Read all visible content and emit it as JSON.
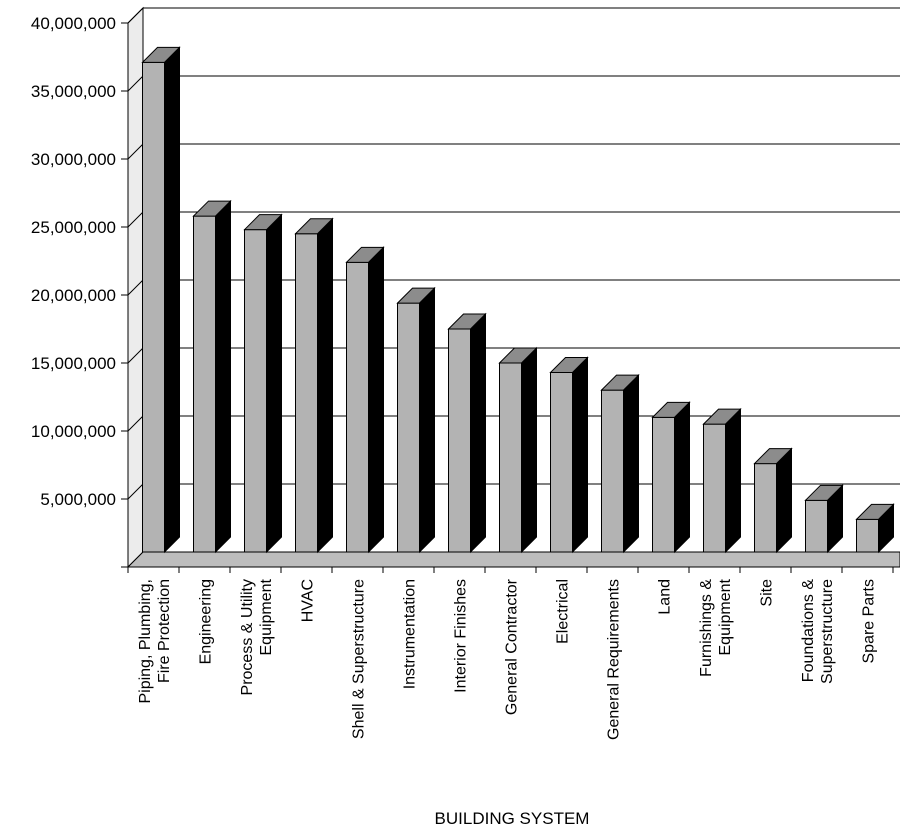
{
  "chart_data": {
    "type": "bar",
    "xlabel": "BUILDING SYSTEM",
    "ylabel": "",
    "ylim": [
      0,
      40000000
    ],
    "grid": true,
    "yticks": [
      "5,000,000",
      "10,000,000",
      "15,000,000",
      "20,000,000",
      "25,000,000",
      "30,000,000",
      "35,000,000",
      "40,000,000"
    ],
    "ytick_values": [
      5000000,
      10000000,
      15000000,
      20000000,
      25000000,
      30000000,
      35000000,
      40000000
    ],
    "categories": [
      [
        "Piping, Plumbing,",
        "Fire Protection"
      ],
      [
        "Engineering"
      ],
      [
        "Process & Utility",
        "Equipment"
      ],
      [
        "HVAC"
      ],
      [
        "Shell & Superstructure"
      ],
      [
        "Instrumentation"
      ],
      [
        "Interior Finishes"
      ],
      [
        "General Contractor"
      ],
      [
        "Electrical"
      ],
      [
        "General Requirements"
      ],
      [
        "Land"
      ],
      [
        "Furnishings &",
        "Equipment"
      ],
      [
        "Site"
      ],
      [
        "Foundations &",
        "Superstructure"
      ],
      [
        "Spare Parts"
      ]
    ],
    "values": [
      36000000,
      24700000,
      23700000,
      23400000,
      21300000,
      18300000,
      16400000,
      13900000,
      13200000,
      11900000,
      9900000,
      9400000,
      6500000,
      3800000,
      2400000
    ],
    "colors": {
      "bar_face": "#b3b3b3",
      "bar_top": "#8c8c8c",
      "bar_side": "#000000",
      "floor": "#bdbdbd",
      "wall": "#ececec"
    }
  }
}
